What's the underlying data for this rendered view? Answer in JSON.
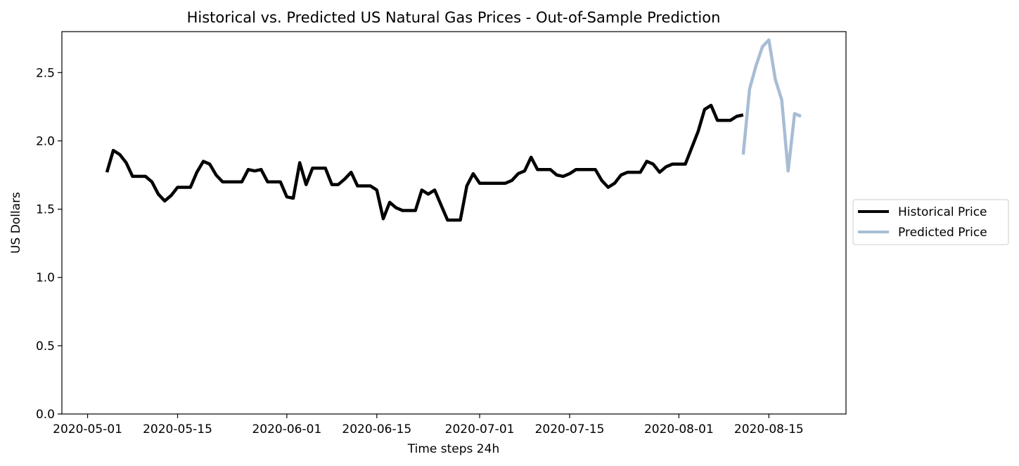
{
  "chart_data": {
    "type": "line",
    "title": "Historical vs. Predicted US Natural Gas Prices - Out-of-Sample Prediction",
    "xlabel": "Time steps 24h",
    "ylabel": "US Dollars",
    "xlim": [
      "2020-04-27",
      "2020-08-27"
    ],
    "ylim": [
      0,
      2.8
    ],
    "x_ticks": [
      "2020-05-01",
      "2020-05-15",
      "2020-06-01",
      "2020-06-15",
      "2020-07-01",
      "2020-07-15",
      "2020-08-01",
      "2020-08-15"
    ],
    "y_ticks": [
      "0.0",
      "0.5",
      "1.0",
      "1.5",
      "2.0",
      "2.5"
    ],
    "grid": false,
    "legend_position": "center-right, outside plot",
    "series": [
      {
        "name": "Historical Price",
        "color": "#000000",
        "points": [
          [
            "2020-05-04",
            1.77
          ],
          [
            "2020-05-05",
            1.93
          ],
          [
            "2020-05-06",
            1.9
          ],
          [
            "2020-05-07",
            1.84
          ],
          [
            "2020-05-08",
            1.74
          ],
          [
            "2020-05-09",
            1.74
          ],
          [
            "2020-05-10",
            1.74
          ],
          [
            "2020-05-11",
            1.7
          ],
          [
            "2020-05-12",
            1.61
          ],
          [
            "2020-05-13",
            1.56
          ],
          [
            "2020-05-14",
            1.6
          ],
          [
            "2020-05-15",
            1.66
          ],
          [
            "2020-05-16",
            1.66
          ],
          [
            "2020-05-17",
            1.66
          ],
          [
            "2020-05-18",
            1.77
          ],
          [
            "2020-05-19",
            1.85
          ],
          [
            "2020-05-20",
            1.83
          ],
          [
            "2020-05-21",
            1.75
          ],
          [
            "2020-05-22",
            1.7
          ],
          [
            "2020-05-23",
            1.7
          ],
          [
            "2020-05-24",
            1.7
          ],
          [
            "2020-05-25",
            1.7
          ],
          [
            "2020-05-26",
            1.79
          ],
          [
            "2020-05-27",
            1.78
          ],
          [
            "2020-05-28",
            1.79
          ],
          [
            "2020-05-29",
            1.7
          ],
          [
            "2020-05-30",
            1.7
          ],
          [
            "2020-05-31",
            1.7
          ],
          [
            "2020-06-01",
            1.59
          ],
          [
            "2020-06-02",
            1.58
          ],
          [
            "2020-06-03",
            1.84
          ],
          [
            "2020-06-04",
            1.68
          ],
          [
            "2020-06-05",
            1.8
          ],
          [
            "2020-06-06",
            1.8
          ],
          [
            "2020-06-07",
            1.8
          ],
          [
            "2020-06-08",
            1.68
          ],
          [
            "2020-06-09",
            1.68
          ],
          [
            "2020-06-10",
            1.72
          ],
          [
            "2020-06-11",
            1.77
          ],
          [
            "2020-06-12",
            1.67
          ],
          [
            "2020-06-13",
            1.67
          ],
          [
            "2020-06-14",
            1.67
          ],
          [
            "2020-06-15",
            1.64
          ],
          [
            "2020-06-16",
            1.43
          ],
          [
            "2020-06-17",
            1.55
          ],
          [
            "2020-06-18",
            1.51
          ],
          [
            "2020-06-19",
            1.49
          ],
          [
            "2020-06-20",
            1.49
          ],
          [
            "2020-06-21",
            1.49
          ],
          [
            "2020-06-22",
            1.64
          ],
          [
            "2020-06-23",
            1.61
          ],
          [
            "2020-06-24",
            1.64
          ],
          [
            "2020-06-25",
            1.53
          ],
          [
            "2020-06-26",
            1.42
          ],
          [
            "2020-06-27",
            1.42
          ],
          [
            "2020-06-28",
            1.42
          ],
          [
            "2020-06-29",
            1.67
          ],
          [
            "2020-06-30",
            1.76
          ],
          [
            "2020-07-01",
            1.69
          ],
          [
            "2020-07-02",
            1.69
          ],
          [
            "2020-07-03",
            1.69
          ],
          [
            "2020-07-04",
            1.69
          ],
          [
            "2020-07-05",
            1.69
          ],
          [
            "2020-07-06",
            1.71
          ],
          [
            "2020-07-07",
            1.76
          ],
          [
            "2020-07-08",
            1.78
          ],
          [
            "2020-07-09",
            1.88
          ],
          [
            "2020-07-10",
            1.79
          ],
          [
            "2020-07-11",
            1.79
          ],
          [
            "2020-07-12",
            1.79
          ],
          [
            "2020-07-13",
            1.75
          ],
          [
            "2020-07-14",
            1.74
          ],
          [
            "2020-07-15",
            1.76
          ],
          [
            "2020-07-16",
            1.79
          ],
          [
            "2020-07-17",
            1.79
          ],
          [
            "2020-07-18",
            1.79
          ],
          [
            "2020-07-19",
            1.79
          ],
          [
            "2020-07-20",
            1.71
          ],
          [
            "2020-07-21",
            1.66
          ],
          [
            "2020-07-22",
            1.69
          ],
          [
            "2020-07-23",
            1.75
          ],
          [
            "2020-07-24",
            1.77
          ],
          [
            "2020-07-25",
            1.77
          ],
          [
            "2020-07-26",
            1.77
          ],
          [
            "2020-07-27",
            1.85
          ],
          [
            "2020-07-28",
            1.83
          ],
          [
            "2020-07-29",
            1.77
          ],
          [
            "2020-07-30",
            1.81
          ],
          [
            "2020-07-31",
            1.83
          ],
          [
            "2020-08-01",
            1.83
          ],
          [
            "2020-08-02",
            1.83
          ],
          [
            "2020-08-03",
            1.95
          ],
          [
            "2020-08-04",
            2.07
          ],
          [
            "2020-08-05",
            2.23
          ],
          [
            "2020-08-06",
            2.26
          ],
          [
            "2020-08-07",
            2.15
          ],
          [
            "2020-08-08",
            2.15
          ],
          [
            "2020-08-09",
            2.15
          ],
          [
            "2020-08-10",
            2.18
          ],
          [
            "2020-08-11",
            2.19
          ]
        ]
      },
      {
        "name": "Predicted Price",
        "color": "#a7bdd4",
        "points": [
          [
            "2020-08-11",
            1.9
          ],
          [
            "2020-08-12",
            2.38
          ],
          [
            "2020-08-13",
            2.55
          ],
          [
            "2020-08-14",
            2.69
          ],
          [
            "2020-08-15",
            2.74
          ],
          [
            "2020-08-16",
            2.45
          ],
          [
            "2020-08-17",
            2.3
          ],
          [
            "2020-08-18",
            1.78
          ],
          [
            "2020-08-19",
            2.2
          ],
          [
            "2020-08-20",
            2.18
          ]
        ]
      }
    ]
  }
}
